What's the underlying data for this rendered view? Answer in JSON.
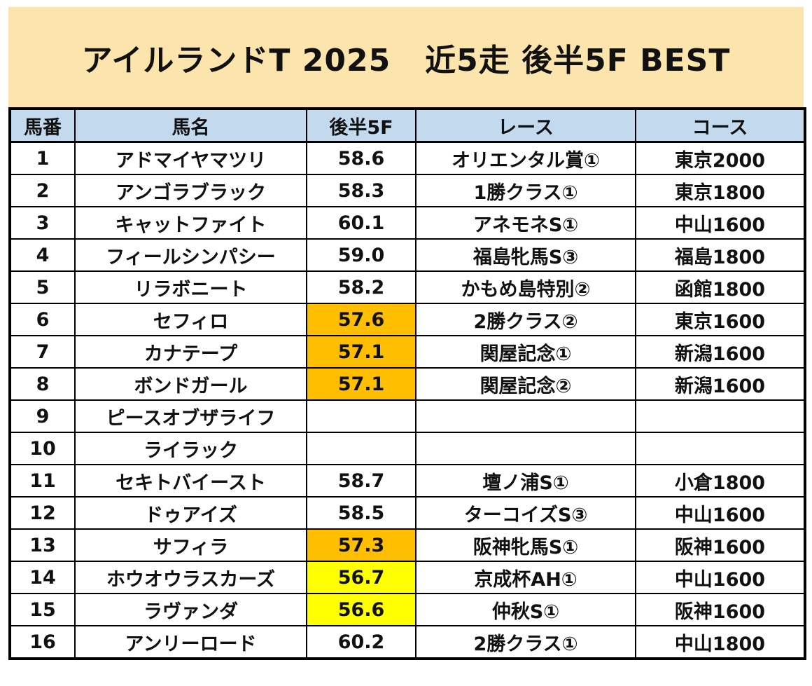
{
  "title": "アイルランドT 2025   近5走 後半5F BEST",
  "headers": {
    "no": "馬番",
    "name": "馬名",
    "time": "後半5F",
    "race": "レース",
    "course": "コース"
  },
  "highlight_colors": {
    "orange": "#ffbf00",
    "yellow": "#ffff00",
    "header_bg": "#c2d9ee",
    "title_bg": "#fce4ad"
  },
  "rows": [
    {
      "no": "1",
      "name": "アドマイヤマツリ",
      "time": "58.6",
      "race": "オリエンタル賞①",
      "course": "東京2000",
      "hl": ""
    },
    {
      "no": "2",
      "name": "アンゴラブラック",
      "time": "58.3",
      "race": "1勝クラス①",
      "course": "東京1800",
      "hl": ""
    },
    {
      "no": "3",
      "name": "キャットファイト",
      "time": "60.1",
      "race": "アネモネS①",
      "course": "中山1600",
      "hl": ""
    },
    {
      "no": "4",
      "name": "フィールシンパシー",
      "time": "59.0",
      "race": "福島牝馬S③",
      "course": "福島1800",
      "hl": ""
    },
    {
      "no": "5",
      "name": "リラボニート",
      "time": "58.2",
      "race": "かもめ島特別②",
      "course": "函館1800",
      "hl": ""
    },
    {
      "no": "6",
      "name": "セフィロ",
      "time": "57.6",
      "race": "2勝クラス②",
      "course": "東京1600",
      "hl": "orange"
    },
    {
      "no": "7",
      "name": "カナテープ",
      "time": "57.1",
      "race": "関屋記念①",
      "course": "新潟1600",
      "hl": "orange"
    },
    {
      "no": "8",
      "name": "ボンドガール",
      "time": "57.1",
      "race": "関屋記念②",
      "course": "新潟1600",
      "hl": "orange"
    },
    {
      "no": "9",
      "name": "ピースオブザライフ",
      "time": "",
      "race": "",
      "course": "",
      "hl": ""
    },
    {
      "no": "10",
      "name": "ライラック",
      "time": "",
      "race": "",
      "course": "",
      "hl": ""
    },
    {
      "no": "11",
      "name": "セキトバイースト",
      "time": "58.7",
      "race": "壇ノ浦S①",
      "course": "小倉1800",
      "hl": ""
    },
    {
      "no": "12",
      "name": "ドゥアイズ",
      "time": "58.5",
      "race": "ターコイズS③",
      "course": "中山1600",
      "hl": ""
    },
    {
      "no": "13",
      "name": "サフィラ",
      "time": "57.3",
      "race": "阪神牝馬S①",
      "course": "阪神1600",
      "hl": "orange"
    },
    {
      "no": "14",
      "name": "ホウオウラスカーズ",
      "time": "56.7",
      "race": "京成杯AH①",
      "course": "中山1600",
      "hl": "yellow"
    },
    {
      "no": "15",
      "name": "ラヴァンダ",
      "time": "56.6",
      "race": "仲秋S①",
      "course": "阪神1600",
      "hl": "yellow"
    },
    {
      "no": "16",
      "name": "アンリーロード",
      "time": "60.2",
      "race": "2勝クラス①",
      "course": "中山1800",
      "hl": ""
    }
  ]
}
